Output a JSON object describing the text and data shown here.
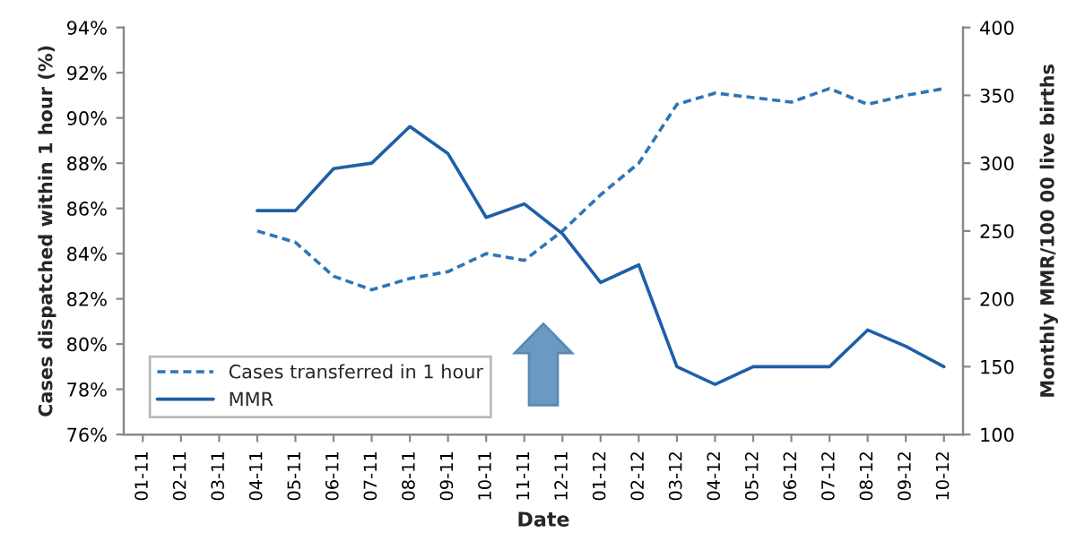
{
  "chart_data": {
    "type": "line",
    "xlabel": "Date",
    "ylabel": "Cases dispatched within 1 hour (%)",
    "y2label": "Monthly MMR/100 00 live births",
    "categories": [
      "01-11",
      "02-11",
      "03-11",
      "04-11",
      "05-11",
      "06-11",
      "07-11",
      "08-11",
      "09-11",
      "10-11",
      "11-11",
      "12-11",
      "01-12",
      "02-12",
      "03-12",
      "04-12",
      "05-12",
      "06-12",
      "07-12",
      "08-12",
      "09-12",
      "10-12"
    ],
    "series": [
      {
        "name": "Cases transferred in 1 hour",
        "color": "#2e75b6",
        "line_style": "dashed",
        "values": [
          null,
          null,
          null,
          85.0,
          84.5,
          83.0,
          82.4,
          82.9,
          83.2,
          84.0,
          83.7,
          85.0,
          86.6,
          88.0,
          90.6,
          91.1,
          90.9,
          90.7,
          91.3,
          90.6,
          91.0,
          91.3
        ]
      },
      {
        "name": "MMR",
        "color": "#1f5fa8",
        "line_style": "solid",
        "axis": "y2",
        "values": [
          null,
          null,
          null,
          265,
          265,
          296,
          300,
          327,
          307,
          260,
          270,
          248,
          212,
          225,
          150,
          137,
          150,
          150,
          150,
          177,
          165,
          150
        ]
      }
    ],
    "ylim": [
      76,
      94
    ],
    "yticks": [
      {
        "value": 76,
        "label": "76%"
      },
      {
        "value": 78,
        "label": "78%"
      },
      {
        "value": 80,
        "label": "80%"
      },
      {
        "value": 82,
        "label": "82%"
      },
      {
        "value": 84,
        "label": "84%"
      },
      {
        "value": 86,
        "label": "86%"
      },
      {
        "value": 88,
        "label": "88%"
      },
      {
        "value": 90,
        "label": "90%"
      },
      {
        "value": 92,
        "label": "92%"
      },
      {
        "value": 94,
        "label": "94%"
      }
    ],
    "y2lim": [
      100,
      400
    ],
    "y2ticks": [
      100,
      150,
      200,
      250,
      300,
      350,
      400
    ],
    "legend": "bottom left",
    "grid": false,
    "marker": "none"
  }
}
